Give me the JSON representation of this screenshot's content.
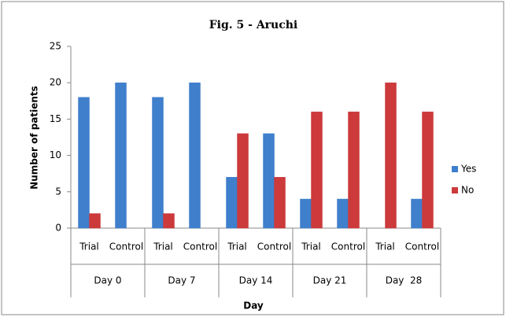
{
  "chart_data": {
    "type": "bar",
    "title": "Fig. 5 - Aruchi",
    "categories": [
      "Trial",
      "Control",
      "Trial",
      "Control",
      "Trial",
      "Control",
      "Trial",
      "Control",
      "Trial",
      "Control"
    ],
    "groups": [
      "Day 0",
      "Day 7",
      "Day 14",
      "Day 21",
      "Day  28"
    ],
    "series": [
      {
        "name": "Yes",
        "color": "#3f7fcc",
        "values": [
          18,
          20,
          18,
          20,
          7,
          13,
          4,
          4,
          0,
          4
        ]
      },
      {
        "name": "No",
        "color": "#cc3a3c",
        "values": [
          2,
          0,
          2,
          0,
          13,
          7,
          16,
          16,
          20,
          16
        ]
      }
    ],
    "ylabel": "Number of patients",
    "xlabel": "Day",
    "ylim": [
      0,
      25
    ],
    "yticks": [
      0,
      5,
      10,
      15,
      20,
      25
    ],
    "grid": false,
    "legend": "right"
  }
}
